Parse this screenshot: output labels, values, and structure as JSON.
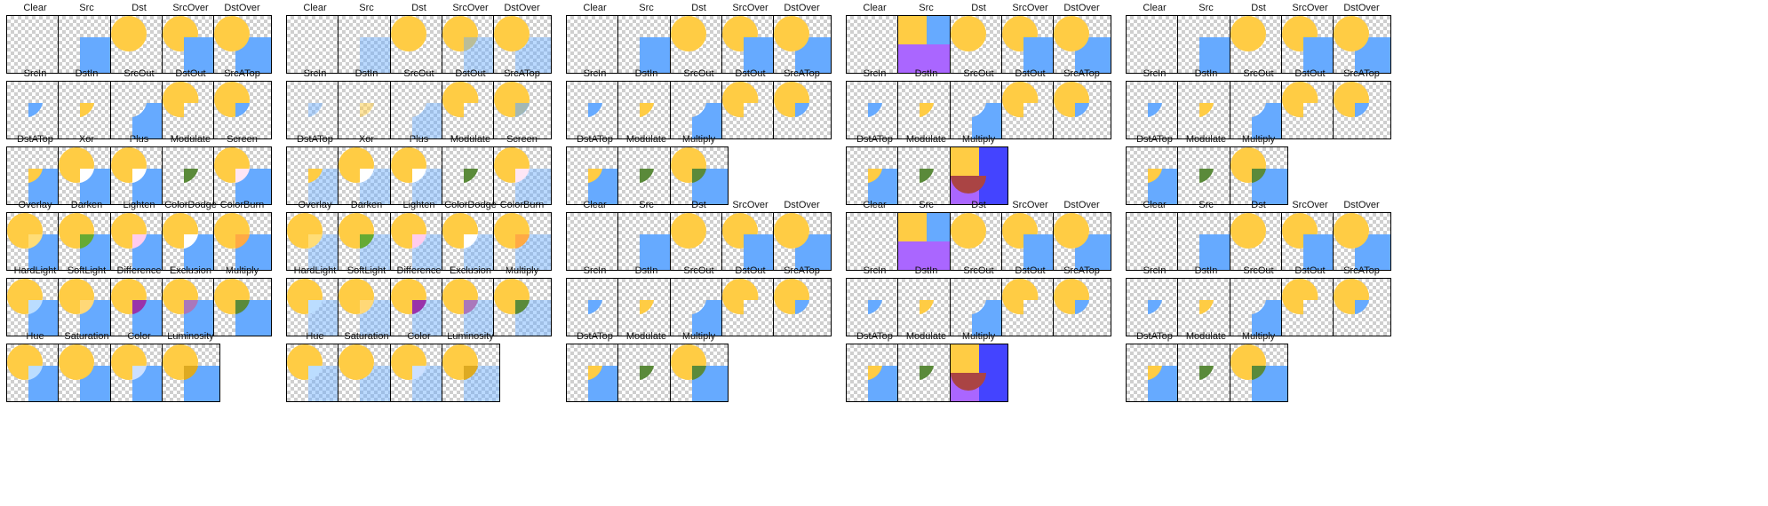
{
  "groups": [
    {
      "rows": [
        [
          "Clear",
          "Src",
          "Dst",
          "SrcOver",
          "DstOver"
        ],
        [
          "SrcIn",
          "DstIn",
          "SrcOut",
          "DstOut",
          "SrcATop"
        ],
        [
          "DstATop",
          "Xor",
          "Plus",
          "Modulate",
          "Screen"
        ],
        [
          "Overlay",
          "Darken",
          "Lighten",
          "ColorDodge",
          "ColorBurn"
        ],
        [
          "HardLight",
          "SoftLight",
          "Difference",
          "Exclusion",
          "Multiply"
        ],
        [
          "Hue",
          "Saturation",
          "Color",
          "Luminosity"
        ]
      ]
    },
    {
      "rows": [
        [
          "Clear",
          "Src",
          "Dst",
          "SrcOver",
          "DstOver"
        ],
        [
          "SrcIn",
          "DstIn",
          "SrcOut",
          "DstOut",
          "SrcATop"
        ],
        [
          "DstATop",
          "Xor",
          "Plus",
          "Modulate",
          "Screen"
        ],
        [
          "Overlay",
          "Darken",
          "Lighten",
          "ColorDodge",
          "ColorBurn"
        ],
        [
          "HardLight",
          "SoftLight",
          "Difference",
          "Exclusion",
          "Multiply"
        ],
        [
          "Hue",
          "Saturation",
          "Color",
          "Luminosity"
        ]
      ]
    },
    {
      "rows": [
        [
          "Clear",
          "Src",
          "Dst",
          "SrcOver",
          "DstOver"
        ],
        [
          "SrcIn",
          "DstIn",
          "SrcOut",
          "DstOut",
          "SrcATop"
        ],
        [
          "DstATop",
          "Modulate",
          "Multiply"
        ],
        [
          "Clear",
          "Src",
          "Dst",
          "SrcOver",
          "DstOver"
        ],
        [
          "SrcIn",
          "DstIn",
          "SrcOut",
          "DstOut",
          "SrcATop"
        ],
        [
          "DstATop",
          "Modulate",
          "Multiply"
        ]
      ]
    },
    {
      "rows": [
        [
          "Clear",
          "Src",
          "Dst",
          "SrcOver",
          "DstOver"
        ],
        [
          "SrcIn",
          "DstIn",
          "SrcOut",
          "DstOut",
          "SrcATop"
        ],
        [
          "DstATop",
          "Modulate",
          "Multiply"
        ],
        [
          "Clear",
          "Src",
          "Dst",
          "SrcOver",
          "DstOver"
        ],
        [
          "SrcIn",
          "DstIn",
          "SrcOut",
          "DstOut",
          "SrcATop"
        ],
        [
          "DstATop",
          "Modulate",
          "Multiply"
        ]
      ]
    },
    {
      "rows": [
        [
          "Clear",
          "Src",
          "Dst",
          "SrcOver",
          "DstOver"
        ],
        [
          "SrcIn",
          "DstIn",
          "SrcOut",
          "DstOut",
          "SrcATop"
        ],
        [
          "DstATop",
          "Modulate",
          "Multiply"
        ],
        [
          "Clear",
          "Src",
          "Dst",
          "SrcOver",
          "DstOver"
        ],
        [
          "SrcIn",
          "DstIn",
          "SrcOut",
          "DstOut",
          "SrcATop"
        ],
        [
          "DstATop",
          "Modulate",
          "Multiply"
        ]
      ]
    }
  ],
  "colors": {
    "dst": "#ffcc44",
    "src": "#66aaff",
    "purple": "#aa66ff",
    "checker": "#cfcfcf"
  }
}
